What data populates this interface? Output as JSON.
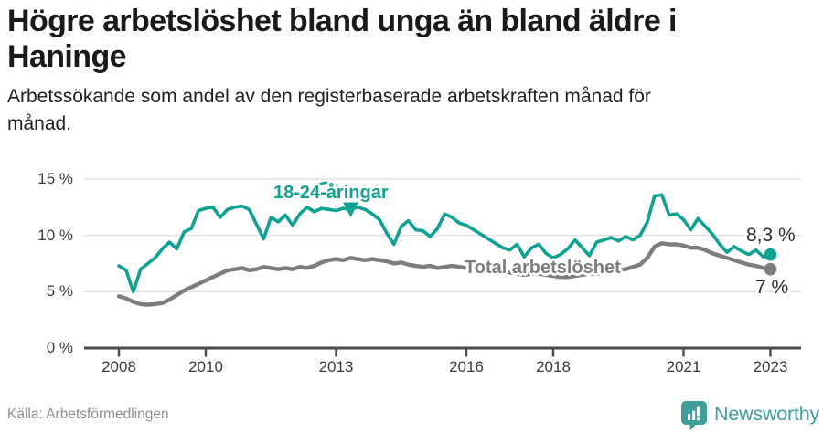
{
  "header": {
    "title_lines": [
      "Högre arbetslöshet bland unga än bland äldre i",
      "Haninge"
    ],
    "subtitle_lines": [
      "Arbetssökande som andel av den registerbaserade arbetskraften månad för",
      "månad."
    ]
  },
  "colors": {
    "teal": "#0fa191",
    "gray": "#7d7d7d",
    "brand": "#3f9e9a",
    "grid": "#dbdbdb",
    "axis": "#4a4a4a",
    "end_label_text": "#2e2e2e"
  },
  "chart_data": {
    "type": "line",
    "title": "Högre arbetslöshet bland unga än bland äldre i Haninge",
    "subtitle": "Arbetssökande som andel av den registerbaserade arbetskraften månad för månad.",
    "unit": "%",
    "x_start_year": 2008,
    "x_end_year": 2023,
    "points_per_year": 6,
    "grid": true,
    "x_axis": {
      "tick_years": [
        2008,
        2010,
        2013,
        2016,
        2018,
        2021,
        2023
      ]
    },
    "y_axis": {
      "range": [
        0,
        15
      ],
      "ticks": [
        {
          "value": 15,
          "label": "15 %"
        },
        {
          "value": 10,
          "label": "10 %"
        },
        {
          "value": 5,
          "label": "5 %"
        },
        {
          "value": 0,
          "label": "0 %"
        }
      ]
    },
    "series": [
      {
        "name": "18-24-åringar",
        "color": "#0fa191",
        "end_label": "8,3 %",
        "end_value": 8.3,
        "values": [
          7.3,
          6.9,
          5.0,
          7.0,
          7.5,
          8.0,
          8.8,
          9.4,
          8.8,
          10.3,
          10.6,
          12.2,
          12.4,
          12.5,
          11.6,
          12.3,
          12.5,
          12.6,
          12.3,
          11.0,
          9.7,
          11.6,
          11.2,
          11.8,
          10.9,
          11.9,
          12.5,
          12.1,
          12.4,
          12.3,
          12.2,
          12.4,
          12.3,
          12.5,
          12.3,
          11.9,
          11.4,
          10.2,
          9.2,
          10.8,
          11.3,
          10.5,
          10.4,
          9.9,
          10.6,
          11.9,
          11.6,
          11.1,
          10.9,
          10.5,
          10.1,
          9.7,
          9.3,
          8.9,
          8.7,
          9.2,
          8.1,
          8.9,
          9.2,
          8.4,
          8.0,
          8.3,
          8.8,
          9.6,
          8.9,
          8.2,
          9.4,
          9.6,
          9.8,
          9.5,
          9.9,
          9.6,
          10.0,
          11.2,
          13.5,
          13.6,
          11.8,
          11.9,
          11.4,
          10.5,
          11.5,
          10.8,
          10.1,
          9.2,
          8.5,
          9.0,
          8.6,
          8.3,
          8.7,
          8.1,
          8.3
        ]
      },
      {
        "name": "Total arbetslöshet",
        "color": "#7d7d7d",
        "end_label": "7 %",
        "end_value": 7.0,
        "values": [
          4.6,
          4.4,
          4.1,
          3.9,
          3.85,
          3.9,
          4.0,
          4.3,
          4.7,
          5.1,
          5.4,
          5.7,
          6.0,
          6.3,
          6.6,
          6.9,
          7.0,
          7.1,
          6.9,
          7.0,
          7.2,
          7.1,
          7.0,
          7.1,
          7.0,
          7.2,
          7.1,
          7.3,
          7.6,
          7.8,
          7.9,
          7.8,
          8.0,
          7.9,
          7.8,
          7.9,
          7.8,
          7.7,
          7.5,
          7.6,
          7.4,
          7.3,
          7.2,
          7.3,
          7.1,
          7.2,
          7.3,
          7.2,
          7.1,
          7.2,
          7.0,
          6.9,
          6.8,
          6.8,
          6.7,
          6.6,
          6.5,
          6.6,
          6.6,
          6.5,
          6.4,
          6.3,
          6.3,
          6.4,
          6.5,
          6.6,
          6.6,
          6.7,
          6.8,
          6.9,
          7.0,
          7.2,
          7.4,
          8.0,
          9.0,
          9.3,
          9.2,
          9.2,
          9.1,
          8.9,
          8.9,
          8.7,
          8.4,
          8.2,
          8.0,
          7.8,
          7.6,
          7.4,
          7.3,
          7.1,
          7.0
        ]
      }
    ]
  },
  "footer": {
    "source": "Källa: Arbetsförmedlingen",
    "brand": "Newsworthy"
  }
}
